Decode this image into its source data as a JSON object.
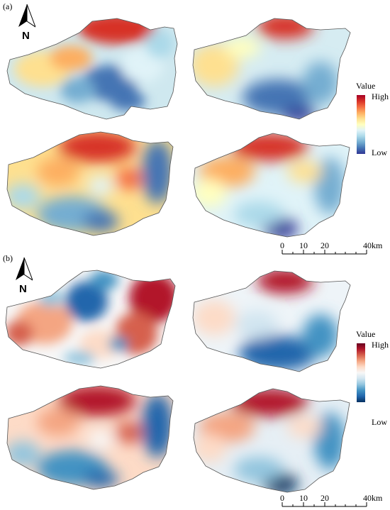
{
  "panels": [
    {
      "label": "(a)",
      "north_label": "N",
      "legend": {
        "title": "Value",
        "high": "High",
        "low": "Low",
        "ramp": [
          "#313695",
          "#4575b4",
          "#74add1",
          "#abd9e9",
          "#e0f3f8",
          "#ffffbf",
          "#fee090",
          "#fdae61",
          "#f46d43",
          "#d73027",
          "#a50026"
        ]
      },
      "scale": {
        "ticks": [
          "0",
          "10",
          "20"
        ],
        "end_label": "40km"
      }
    },
    {
      "label": "(b)",
      "north_label": "N",
      "legend": {
        "title": "Value",
        "high": "High",
        "low": "Low",
        "ramp": [
          "#053061",
          "#2166ac",
          "#4393c3",
          "#92c5de",
          "#d1e5f0",
          "#f7f7f7",
          "#fddbc7",
          "#f4a582",
          "#d6604d",
          "#b2182b",
          "#67001f"
        ]
      },
      "scale": {
        "ticks": [
          "0",
          "10",
          "20"
        ],
        "end_label": "40km"
      }
    }
  ]
}
